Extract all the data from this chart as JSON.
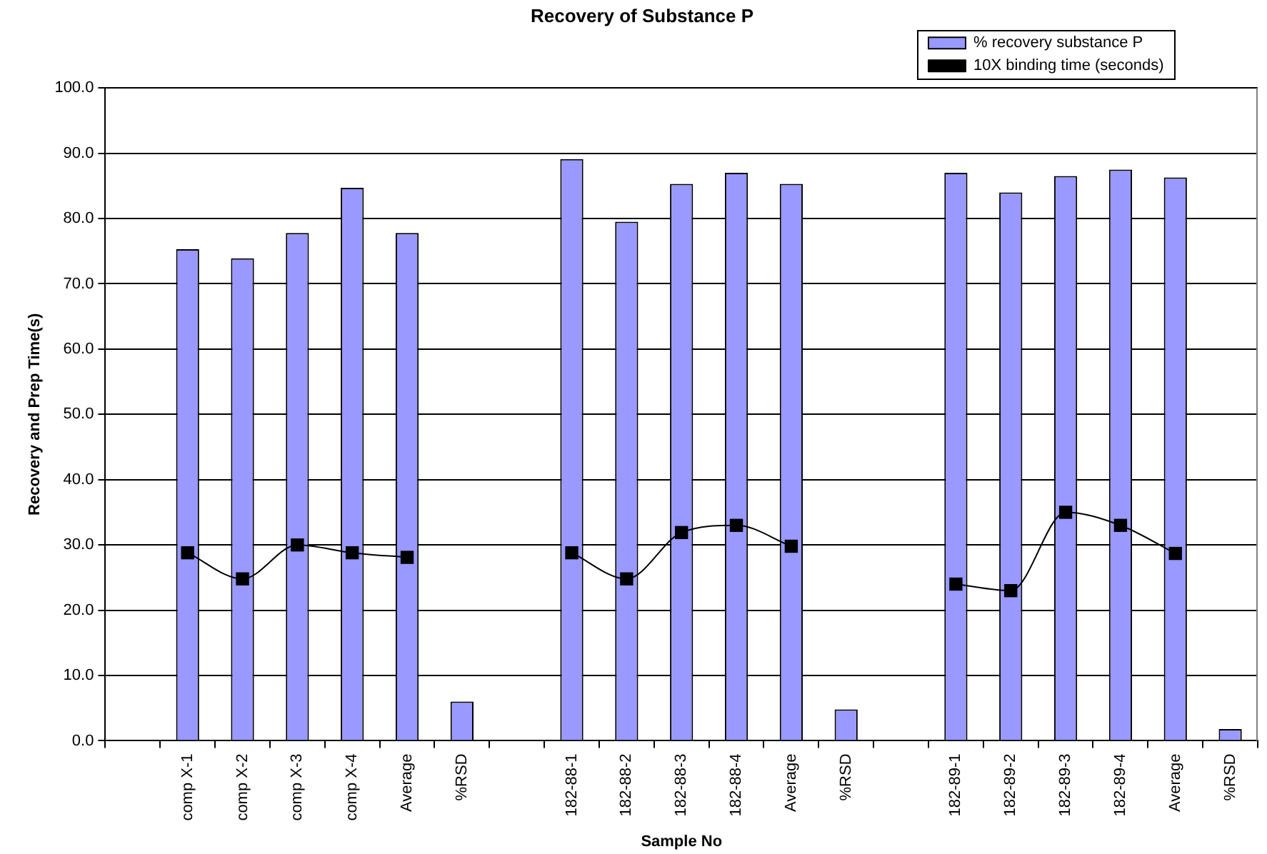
{
  "chart_data": {
    "type": "bar",
    "title": "Recovery of Substance P",
    "xlabel": "Sample No",
    "ylabel": "Recovery and Prep Time(s)",
    "categories": [
      null,
      "comp X-1",
      "comp X-2",
      "comp X-3",
      "comp X-4",
      "Average",
      "%RSD",
      null,
      "182-88-1",
      "182-88-2",
      "182-88-3",
      "182-88-4",
      "Average",
      "%RSD",
      null,
      "182-89-1",
      "182-89-2",
      "182-89-3",
      "182-89-4",
      "Average",
      "%RSD"
    ],
    "series": [
      {
        "name": "% recovery substance P",
        "color": "#9999ff",
        "values": [
          null,
          75.3,
          73.9,
          77.8,
          84.7,
          77.8,
          6.0,
          null,
          89.1,
          79.5,
          85.3,
          87.0,
          85.3,
          4.8,
          null,
          87.0,
          84.0,
          86.5,
          87.5,
          86.3,
          1.8
        ]
      },
      {
        "name": "10X binding time (seconds)",
        "type": "line",
        "color": "#000000",
        "marker": "square",
        "values": [
          null,
          28.8,
          24.8,
          30.0,
          28.8,
          28.1,
          null,
          null,
          28.8,
          24.8,
          31.9,
          33.0,
          29.8,
          null,
          null,
          24.0,
          23.0,
          35.0,
          33.0,
          28.7,
          null
        ]
      }
    ],
    "ylim": [
      0,
      100
    ],
    "yticks": [
      {
        "value": 0,
        "label": "0.0"
      },
      {
        "value": 10,
        "label": "10.0"
      },
      {
        "value": 20,
        "label": "20.0"
      },
      {
        "value": 30,
        "label": "30.0"
      },
      {
        "value": 40,
        "label": "40.0"
      },
      {
        "value": 50,
        "label": "50.0"
      },
      {
        "value": 60,
        "label": "60.0"
      },
      {
        "value": 70,
        "label": "70.0"
      },
      {
        "value": 80,
        "label": "80.0"
      },
      {
        "value": 90,
        "label": "90.0"
      },
      {
        "value": 100,
        "label": "100.0"
      }
    ],
    "grid": "y",
    "legend": "top right"
  }
}
